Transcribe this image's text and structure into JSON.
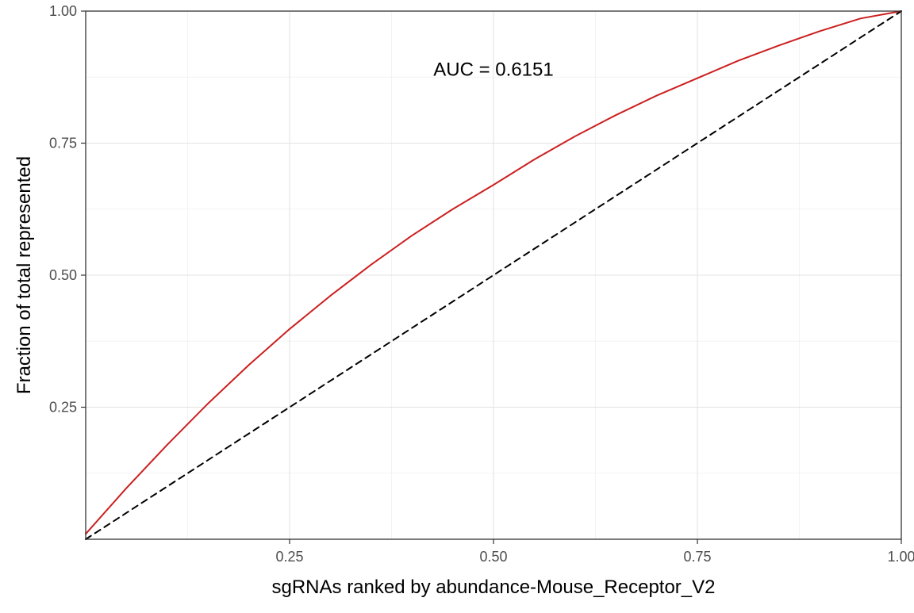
{
  "chart_data": {
    "type": "line",
    "xlabel": "sgRNAs ranked by abundance-Mouse_Receptor_V2",
    "ylabel": "Fraction of total represented",
    "xlim": [
      0,
      1
    ],
    "ylim": [
      0,
      1
    ],
    "x_ticks": [
      {
        "value": 0.25,
        "label": "0.25"
      },
      {
        "value": 0.5,
        "label": "0.50"
      },
      {
        "value": 0.75,
        "label": "0.75"
      },
      {
        "value": 1.0,
        "label": "1.00"
      }
    ],
    "y_ticks": [
      {
        "value": 0.25,
        "label": "0.25"
      },
      {
        "value": 0.5,
        "label": "0.50"
      },
      {
        "value": 0.75,
        "label": "0.75"
      },
      {
        "value": 1.0,
        "label": "1.00"
      }
    ],
    "grid": true,
    "annotation": {
      "text": "AUC = 0.6151",
      "x": 0.5,
      "y": 0.89
    },
    "series": [
      {
        "color": "#cc1f1f",
        "style": "solid",
        "x": [
          0,
          0.05,
          0.1,
          0.15,
          0.2,
          0.25,
          0.3,
          0.35,
          0.4,
          0.45,
          0.5,
          0.55,
          0.6,
          0.65,
          0.7,
          0.75,
          0.8,
          0.85,
          0.9,
          0.95,
          1.0
        ],
        "y": [
          0.01,
          0.097,
          0.179,
          0.257,
          0.33,
          0.398,
          0.461,
          0.52,
          0.575,
          0.625,
          0.671,
          0.719,
          0.763,
          0.803,
          0.84,
          0.873,
          0.906,
          0.935,
          0.962,
          0.986,
          1.0
        ]
      },
      {
        "color": "#000000",
        "style": "dashed",
        "x": [
          0,
          1
        ],
        "y": [
          0,
          1
        ]
      }
    ]
  }
}
